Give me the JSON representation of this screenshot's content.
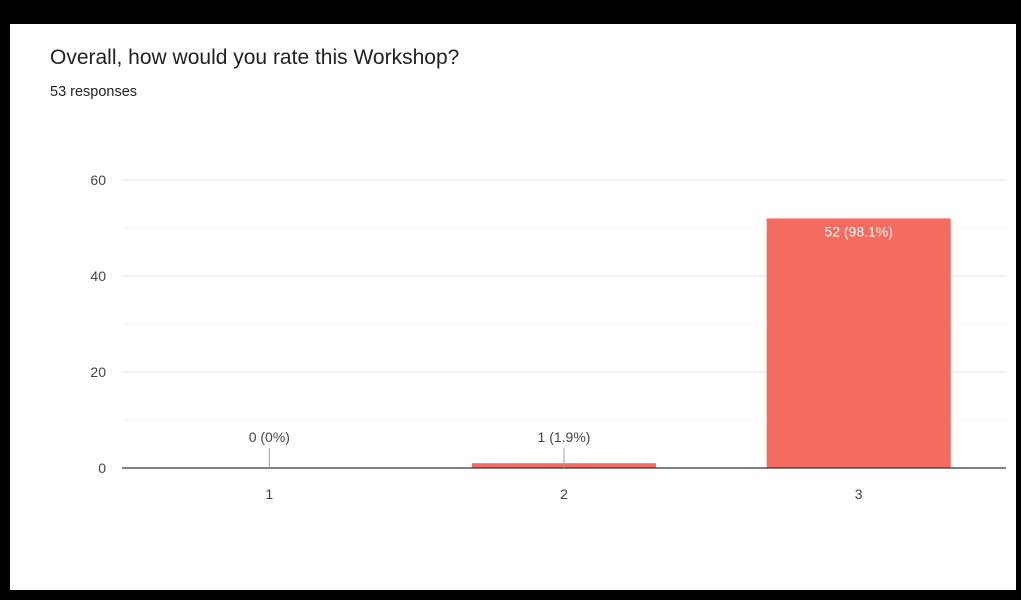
{
  "chart_data": {
    "type": "bar",
    "title": "Overall, how would you rate this Workshop?",
    "subtitle": "53 responses",
    "categories": [
      "1",
      "2",
      "3"
    ],
    "values": [
      0,
      1,
      52
    ],
    "data_labels": [
      "0 (0%)",
      "1 (1.9%)",
      "52 (98.1%)"
    ],
    "yticks": [
      "0",
      "20",
      "40",
      "60"
    ],
    "ylim": [
      0,
      60
    ],
    "grid": true,
    "bar_color": "#f46b5f",
    "xlabel": "",
    "ylabel": ""
  }
}
